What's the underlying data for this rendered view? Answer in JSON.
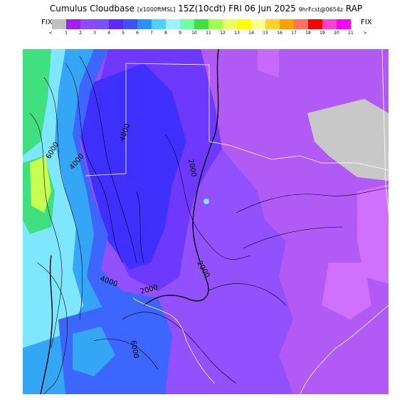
{
  "header": {
    "product": "Cumulus Cloudbase",
    "units": "[x1000ftMSL]",
    "valid": "15Z(10cdt) FRI 06 Jun 2025",
    "forecast": "9hrFcst@0654z",
    "model": "RAP"
  },
  "legend": {
    "fix_left": "FIX",
    "fix_right": "FIX",
    "low_marker": "<",
    "high_marker": ">",
    "ticks": [
      "1",
      "2",
      "3",
      "4",
      "5",
      "6",
      "7",
      "8",
      "9",
      "10",
      "11",
      "12",
      "13",
      "14",
      "15",
      "16",
      "17",
      "18",
      "19",
      "20",
      "21"
    ],
    "colors": [
      "#c0c0c0",
      "#a020f0",
      "#9048ff",
      "#7850ff",
      "#5c28ff",
      "#3c50ff",
      "#2890ff",
      "#50d0ff",
      "#9ef0ff",
      "#70ffa0",
      "#40e040",
      "#a0ff50",
      "#e8ff60",
      "#ffff00",
      "#ffff90",
      "#ffd030",
      "#ffa000",
      "#ff7060",
      "#ff0000",
      "#ff40d0",
      "#ff00ff"
    ]
  },
  "map": {
    "contour_labels": [
      "2000",
      "2000",
      "2000",
      "4000",
      "4000",
      "6000",
      "4000",
      "6000"
    ],
    "colors": {
      "purple_light": "#b15af5",
      "purple_mid": "#9350ff",
      "purple_dark": "#6f38ff",
      "blue_violet": "#4030ff",
      "blue": "#3c66ff",
      "cyan": "#34a6f5",
      "aqua": "#7fe6ff",
      "green": "#40e080",
      "yellow_green": "#c8ff50",
      "grey": "#c8c8c8",
      "pink": "#d070ff"
    }
  }
}
